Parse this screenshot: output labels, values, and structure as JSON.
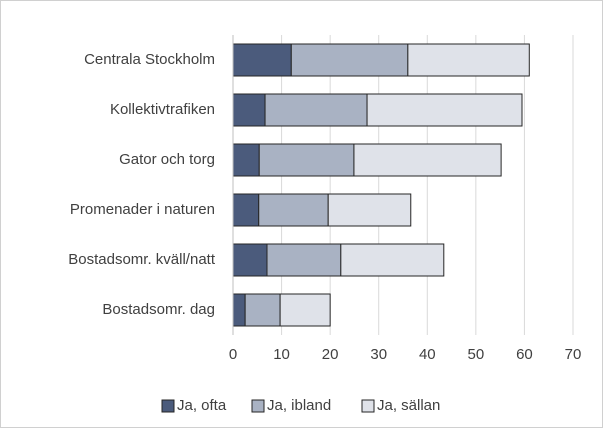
{
  "chart_data": {
    "type": "stacked_bar_horizontal",
    "categories": [
      "Centrala Stockholm",
      "Kollektivtrafiken",
      "Gator och torg",
      "Promenader i naturen",
      "Bostadsomr. kväll/natt",
      "Bostadsomr. dag"
    ],
    "series": [
      {
        "name": "Ja, ofta",
        "color": "#4b5b7c",
        "values": [
          12,
          6.6,
          5.4,
          5.3,
          7,
          2.5
        ]
      },
      {
        "name": "Ja, ibland",
        "color": "#a9b2c3",
        "values": [
          24,
          21,
          19.5,
          14.3,
          15.2,
          7.2
        ]
      },
      {
        "name": "Ja, sällan",
        "color": "#dfe2e9",
        "values": [
          25,
          31.9,
          30.3,
          17,
          21.2,
          10.3
        ]
      }
    ],
    "xlim": [
      0,
      70
    ],
    "xticks": [
      0,
      10,
      20,
      30,
      40,
      50,
      60,
      70
    ],
    "grid": true,
    "legend": "bottom"
  }
}
